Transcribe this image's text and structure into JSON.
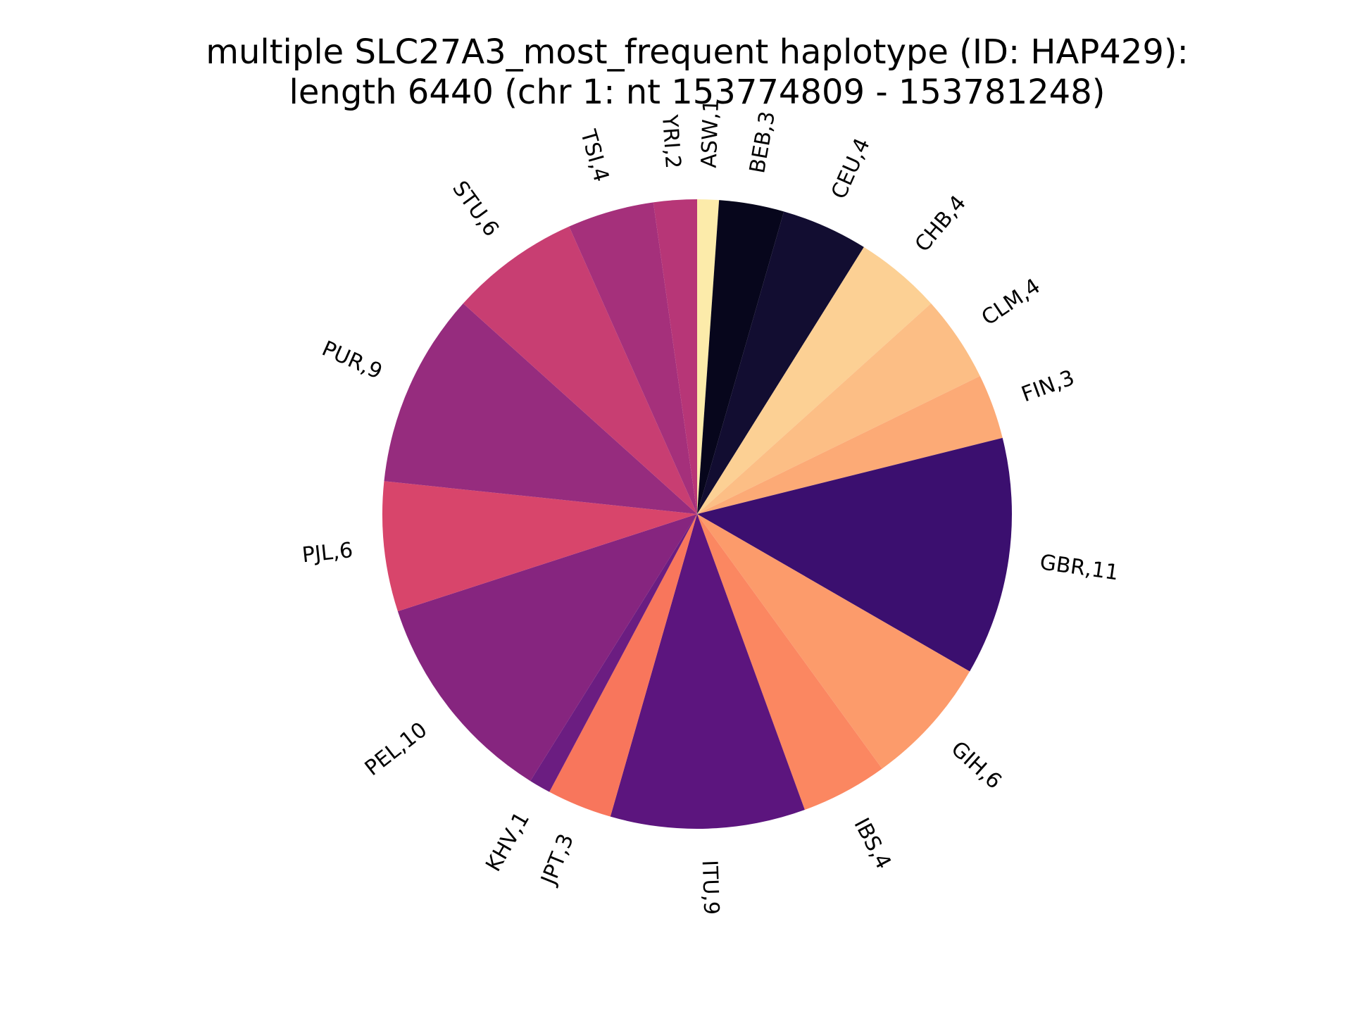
{
  "chart_data": {
    "type": "pie",
    "title_line1": "multiple SLC27A3_most_frequent haplotype (ID: HAP429):",
    "title_line2": "length 6440 (chr 1: nt 153774809 - 153781248)",
    "slices": [
      {
        "label": "ASW,1",
        "value": 1,
        "color": "#fcebaa"
      },
      {
        "label": "BEB,3",
        "value": 3,
        "color": "#07061c"
      },
      {
        "label": "CEU,4",
        "value": 4,
        "color": "#120d31"
      },
      {
        "label": "CHB,4",
        "value": 4,
        "color": "#fcd094"
      },
      {
        "label": "CLM,4",
        "value": 4,
        "color": "#fcbe85"
      },
      {
        "label": "FIN,3",
        "value": 3,
        "color": "#fcaa76"
      },
      {
        "label": "GBR,11",
        "value": 11,
        "color": "#3b0f6f"
      },
      {
        "label": "GIH,6",
        "value": 6,
        "color": "#fc9b6b"
      },
      {
        "label": "IBS,4",
        "value": 4,
        "color": "#fb8761"
      },
      {
        "label": "ITU,9",
        "value": 9,
        "color": "#5c157e"
      },
      {
        "label": "JPT,3",
        "value": 3,
        "color": "#f8765c"
      },
      {
        "label": "KHV,1",
        "value": 1,
        "color": "#6b1d81"
      },
      {
        "label": "PEL,10",
        "value": 10,
        "color": "#86257f"
      },
      {
        "label": "PJL,6",
        "value": 6,
        "color": "#d8456b"
      },
      {
        "label": "PUR,9",
        "value": 9,
        "color": "#962c7e"
      },
      {
        "label": "STU,6",
        "value": 6,
        "color": "#c83e72"
      },
      {
        "label": "TSI,4",
        "value": 4,
        "color": "#a5307b"
      },
      {
        "label": "YRI,2",
        "value": 2,
        "color": "#b73677"
      }
    ],
    "start_angle_deg": 90,
    "direction": "clockwise"
  }
}
